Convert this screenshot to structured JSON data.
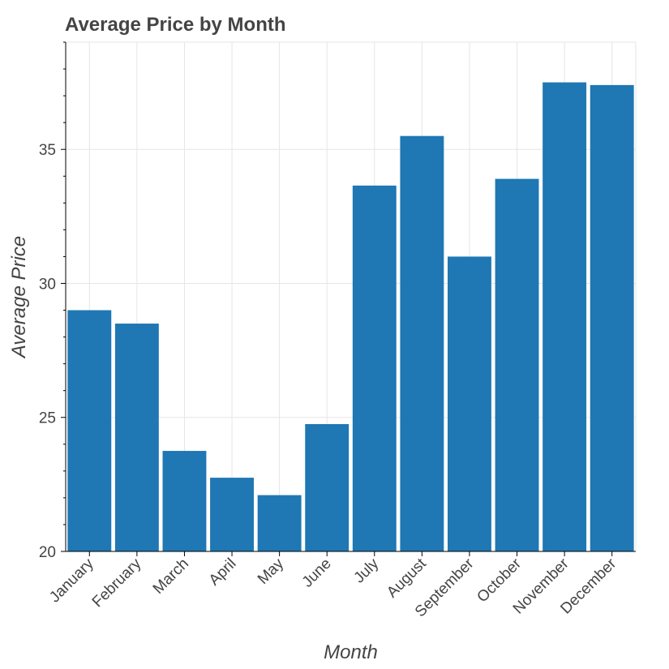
{
  "chart_data": {
    "type": "bar",
    "title": "Average Price by Month",
    "xlabel": "Month",
    "ylabel": "Average Price",
    "categories": [
      "January",
      "February",
      "March",
      "April",
      "May",
      "June",
      "July",
      "August",
      "September",
      "October",
      "November",
      "December"
    ],
    "values": [
      29.0,
      28.5,
      23.75,
      22.75,
      22.1,
      24.75,
      33.65,
      35.5,
      31.0,
      33.9,
      37.5,
      37.4
    ],
    "ylim": [
      20,
      39.0
    ],
    "yticks": [
      20,
      25,
      30,
      35
    ],
    "y_minor_step": 1,
    "grid": true,
    "legend": "none",
    "colors": {
      "bar": "#1f77b4",
      "grid": "#e5e5e5",
      "text": "#444444",
      "axis": "#000000"
    }
  }
}
